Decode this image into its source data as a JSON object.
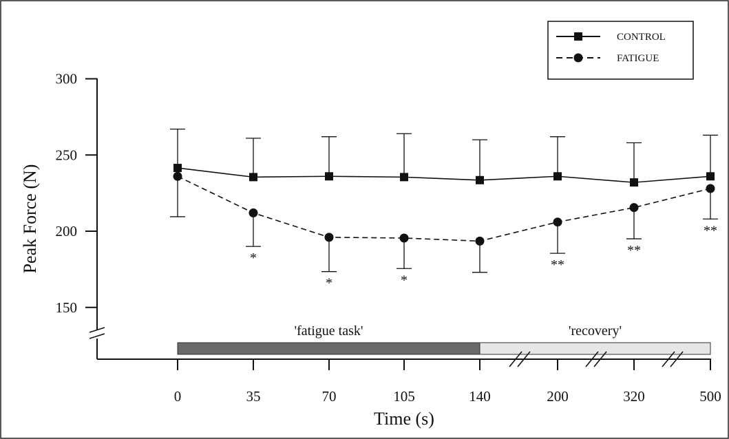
{
  "chart_data": {
    "type": "line",
    "title": "",
    "xlabel": "Time (s)",
    "ylabel": "Peak Force (N)",
    "x": [
      "0",
      "35",
      "70",
      "105",
      "140",
      "200",
      "320",
      "500"
    ],
    "ylim": [
      150,
      300
    ],
    "yticks": [
      "150",
      "200",
      "250",
      "300"
    ],
    "grid": false,
    "legend_position": "top-right",
    "series": [
      {
        "name": "CONTROL",
        "marker": "square",
        "line_style": "solid",
        "values": [
          241.5,
          235.5,
          236,
          235.5,
          233.5,
          236,
          232,
          236
        ],
        "error_upper": [
          267,
          261,
          262,
          264,
          260,
          262,
          258,
          263
        ]
      },
      {
        "name": "FATIGUE",
        "marker": "circle",
        "line_style": "dashed",
        "values": [
          236,
          212,
          196,
          195.5,
          193.5,
          206,
          215.5,
          228
        ],
        "error_lower": [
          209.5,
          190,
          173.5,
          175.5,
          173,
          185.5,
          195,
          208
        ]
      }
    ],
    "significance": [
      "",
      "*",
      "*",
      "*",
      "",
      "**",
      "**",
      "**"
    ],
    "phases": [
      {
        "label": "'fatigue task'",
        "from": "0",
        "to": "140",
        "color": "#6a6a6a"
      },
      {
        "label": "'recovery'",
        "from": "140",
        "to": "500",
        "color": "#e6e6e6"
      }
    ],
    "axis_breaks": [
      "y",
      "x between 140 and 200",
      "x between 200 and 320",
      "x between 320 and 500"
    ]
  }
}
